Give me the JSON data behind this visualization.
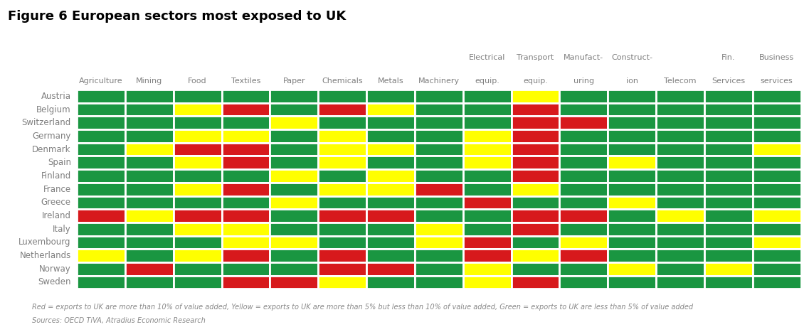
{
  "title": "Figure 6 European sectors most exposed to UK",
  "col_top": [
    "",
    "",
    "",
    "",
    "",
    "",
    "",
    "",
    "Electrical",
    "Transport",
    "Manufact-",
    "Construct-",
    "",
    "Fin.",
    "Business"
  ],
  "col_bot": [
    "Agriculture",
    "Mining",
    "Food",
    "Textiles",
    "Paper",
    "Chemicals",
    "Metals",
    "Machinery",
    "equip.",
    "equip.",
    "uring",
    "ion",
    "Telecom",
    "Services",
    "services"
  ],
  "rows": [
    "Austria",
    "Belgium",
    "Switzerland",
    "Germany",
    "Denmark",
    "Spain",
    "Finland",
    "France",
    "Greece",
    "Ireland",
    "Italy",
    "Luxembourg",
    "Netherlands",
    "Norway",
    "Sweden"
  ],
  "colors": {
    "G": "#1a9641",
    "Y": "#ffff00",
    "R": "#d7191c"
  },
  "grid": [
    [
      "G",
      "G",
      "G",
      "G",
      "G",
      "G",
      "G",
      "G",
      "G",
      "Y",
      "G",
      "G",
      "G",
      "G",
      "G"
    ],
    [
      "G",
      "G",
      "Y",
      "R",
      "G",
      "R",
      "Y",
      "G",
      "G",
      "R",
      "G",
      "G",
      "G",
      "G",
      "G"
    ],
    [
      "G",
      "G",
      "G",
      "G",
      "Y",
      "G",
      "G",
      "G",
      "G",
      "R",
      "R",
      "G",
      "G",
      "G",
      "G"
    ],
    [
      "G",
      "G",
      "Y",
      "Y",
      "G",
      "Y",
      "G",
      "G",
      "Y",
      "R",
      "G",
      "G",
      "G",
      "G",
      "G"
    ],
    [
      "G",
      "Y",
      "R",
      "R",
      "G",
      "Y",
      "Y",
      "G",
      "Y",
      "R",
      "G",
      "G",
      "G",
      "G",
      "Y"
    ],
    [
      "G",
      "G",
      "Y",
      "R",
      "G",
      "Y",
      "G",
      "G",
      "Y",
      "R",
      "G",
      "Y",
      "G",
      "G",
      "G"
    ],
    [
      "G",
      "G",
      "G",
      "G",
      "Y",
      "G",
      "Y",
      "G",
      "G",
      "R",
      "G",
      "G",
      "G",
      "G",
      "G"
    ],
    [
      "G",
      "G",
      "Y",
      "R",
      "G",
      "Y",
      "Y",
      "R",
      "G",
      "Y",
      "G",
      "G",
      "G",
      "G",
      "G"
    ],
    [
      "G",
      "G",
      "G",
      "G",
      "Y",
      "G",
      "G",
      "G",
      "R",
      "G",
      "G",
      "Y",
      "G",
      "G",
      "G"
    ],
    [
      "R",
      "Y",
      "R",
      "R",
      "G",
      "R",
      "R",
      "G",
      "G",
      "R",
      "R",
      "G",
      "Y",
      "G",
      "Y"
    ],
    [
      "G",
      "G",
      "Y",
      "Y",
      "G",
      "G",
      "G",
      "Y",
      "G",
      "R",
      "G",
      "G",
      "G",
      "G",
      "G"
    ],
    [
      "G",
      "G",
      "G",
      "Y",
      "Y",
      "G",
      "G",
      "Y",
      "R",
      "G",
      "Y",
      "G",
      "G",
      "G",
      "Y"
    ],
    [
      "Y",
      "G",
      "Y",
      "R",
      "G",
      "R",
      "G",
      "G",
      "R",
      "Y",
      "R",
      "G",
      "G",
      "G",
      "G"
    ],
    [
      "G",
      "R",
      "G",
      "G",
      "G",
      "R",
      "R",
      "G",
      "Y",
      "G",
      "G",
      "Y",
      "G",
      "Y",
      "G"
    ],
    [
      "G",
      "G",
      "G",
      "R",
      "R",
      "Y",
      "G",
      "G",
      "Y",
      "R",
      "G",
      "G",
      "G",
      "G",
      "G"
    ]
  ],
  "footnote_line1": "Red = exports to UK are more than 10% of value added, Yellow = exports to UK are more than 5% but less than 10% of value added, Green = exports to UK are less than 5% of value added",
  "footnote_line2": "Sources: OECD TiVA, Atradius Economic Research",
  "background_color": "#ffffff",
  "cell_edge_color": "#ffffff",
  "cell_linewidth": 2.0,
  "title_fontsize": 13,
  "col_label_fontsize": 8,
  "row_label_fontsize": 8.5,
  "footnote_fontsize": 7
}
